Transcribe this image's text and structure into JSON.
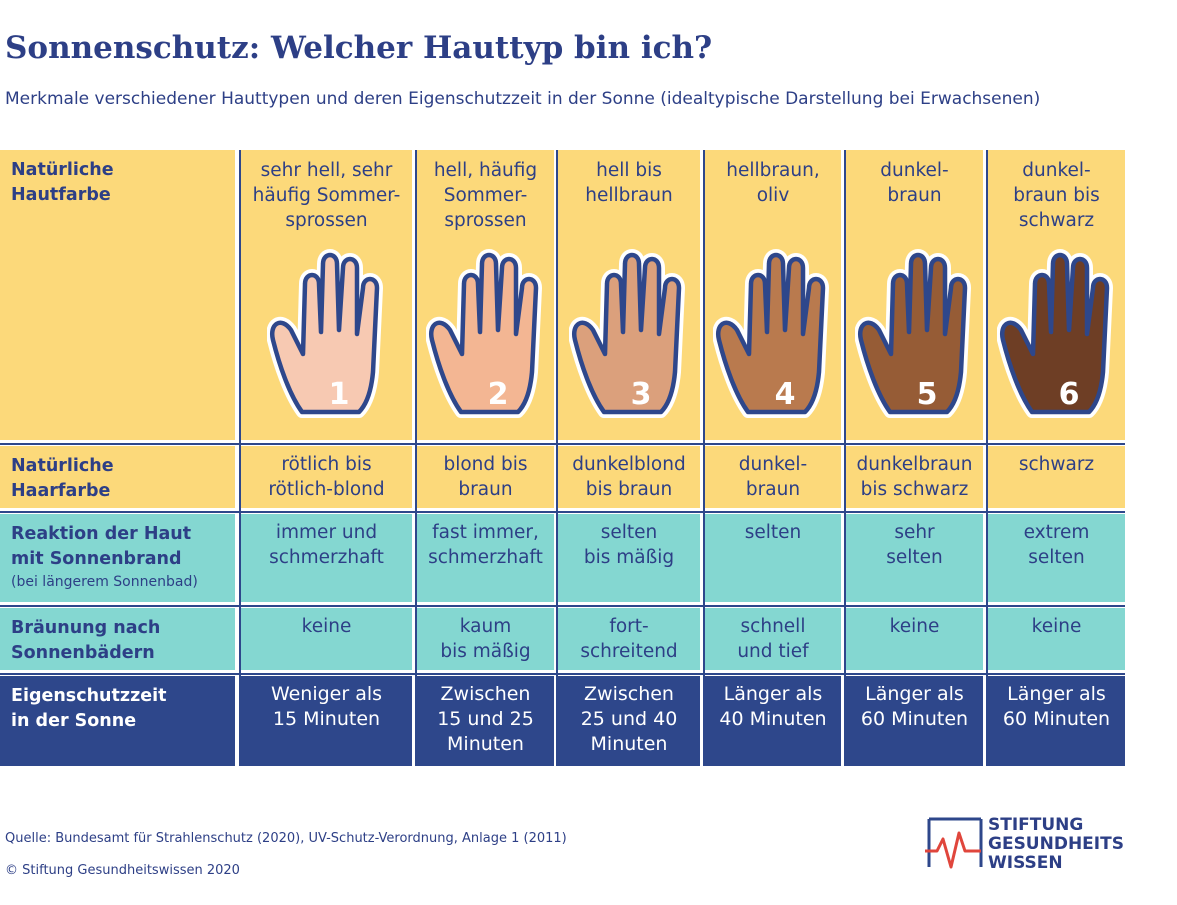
{
  "title": "Sonnenschutz: Welcher Hauttyp bin ich?",
  "subtitle": "Merkmale verschiedener Hauttypen und deren Eigenschutzzeit in der Sonne (idealtypische Darstellung bei Erwachsenen)",
  "rows": {
    "skin": {
      "label_1": "Natürliche",
      "label_2": "Hautfarbe"
    },
    "hair": {
      "label_1": "Natürliche",
      "label_2": "Haarfarbe"
    },
    "reaction": {
      "label_1": "Reaktion der Haut",
      "label_2": "mit Sonnenbrand",
      "label_3": "(bei längerem Sonnenbad)"
    },
    "tan": {
      "label_1": "Bräunung nach",
      "label_2": "Sonnenbädern"
    },
    "protection": {
      "label_1": "Eigenschutzzeit",
      "label_2": "in der Sonne"
    }
  },
  "types": [
    {
      "number": "1",
      "skin_color": "#f7c9b2",
      "skin_1": "sehr hell, sehr",
      "skin_2": "häufig Sommer-",
      "skin_3": "sprossen",
      "hair_1": "rötlich bis",
      "hair_2": "rötlich-blond",
      "reaction_1": "immer und",
      "reaction_2": "schmerzhaft",
      "tan_1": "keine",
      "tan_2": "",
      "time_1": "Weniger als",
      "time_2": "15 Minuten",
      "time_3": ""
    },
    {
      "number": "2",
      "skin_color": "#f3b693",
      "skin_1": "hell, häufig",
      "skin_2": "Sommer-",
      "skin_3": "sprossen",
      "hair_1": "blond bis",
      "hair_2": "braun",
      "reaction_1": "fast immer,",
      "reaction_2": "schmerzhaft",
      "tan_1": "kaum",
      "tan_2": "bis mäßig",
      "time_1": "Zwischen",
      "time_2": "15 und 25",
      "time_3": "Minuten"
    },
    {
      "number": "3",
      "skin_color": "#dba07c",
      "skin_1": "hell bis",
      "skin_2": "hellbraun",
      "skin_3": "",
      "hair_1": "dunkelblond",
      "hair_2": "bis braun",
      "reaction_1": "selten",
      "reaction_2": "bis mäßig",
      "tan_1": "fort-",
      "tan_2": "schreitend",
      "time_1": "Zwischen",
      "time_2": "25 und 40",
      "time_3": "Minuten"
    },
    {
      "number": "4",
      "skin_color": "#b97a4e",
      "skin_1": "hellbraun,",
      "skin_2": "oliv",
      "skin_3": "",
      "hair_1": "dunkel-",
      "hair_2": "braun",
      "reaction_1": "selten",
      "reaction_2": "",
      "tan_1": "schnell",
      "tan_2": "und tief",
      "time_1": "Länger als",
      "time_2": "40 Minuten",
      "time_3": ""
    },
    {
      "number": "5",
      "skin_color": "#965c36",
      "skin_1": "dunkel-",
      "skin_2": "braun",
      "skin_3": "",
      "hair_1": "dunkelbraun",
      "hair_2": "bis schwarz",
      "reaction_1": "sehr",
      "reaction_2": "selten",
      "tan_1": "keine",
      "tan_2": "",
      "time_1": "Länger als",
      "time_2": "60 Minuten",
      "time_3": ""
    },
    {
      "number": "6",
      "skin_color": "#6e3e25",
      "skin_1": "dunkel-",
      "skin_2": "braun bis",
      "skin_3": "schwarz",
      "hair_1": "schwarz",
      "hair_2": "",
      "reaction_1": "extrem",
      "reaction_2": "selten",
      "tan_1": "keine",
      "tan_2": "",
      "time_1": "Länger als",
      "time_2": "60 Minuten",
      "time_3": ""
    }
  ],
  "footer": {
    "source": "Quelle: Bundesamt für Strahlenschutz (2020), UV-Schutz-Verordnung, Anlage 1 (2011)",
    "copyright": "© Stiftung Gesundheitswissen 2020"
  },
  "logo": {
    "line_1": "STIFTUNG",
    "line_2": "GESUNDHEITS",
    "line_3": "WISSEN"
  },
  "colors": {
    "navy": "#2e478b",
    "yellow": "#fcd97a",
    "teal": "#84d7d1",
    "logo_red": "#e0463c"
  }
}
